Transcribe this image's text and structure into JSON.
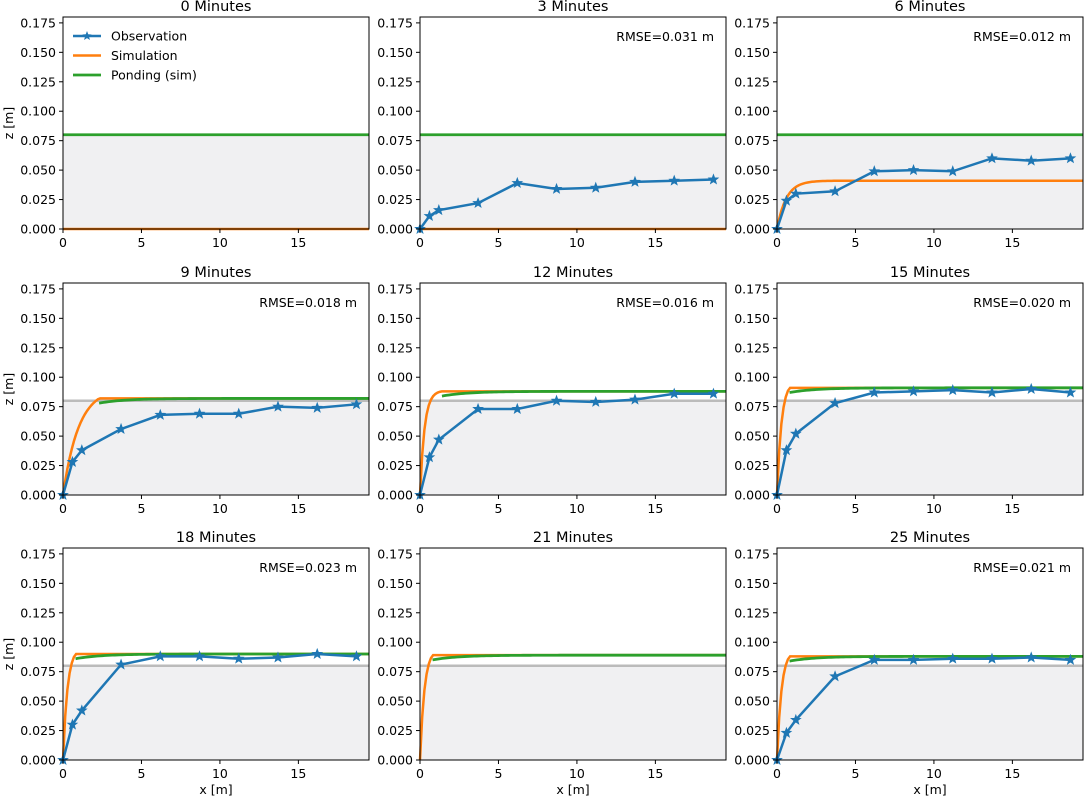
{
  "figure": {
    "legend": [
      "Observation",
      "Simulation",
      "Ponding (sim)"
    ],
    "xlabel": "x [m]",
    "ylabel": "z [m]",
    "colors": {
      "observation": "#1f77b4",
      "simulation": "#ff7f0e",
      "ponding": "#2ca02c",
      "surface": "#bbbbbb",
      "fill": "#f0f0f2"
    }
  },
  "chart_data": [
    {
      "type": "line",
      "title": "0 Minutes",
      "rmse": "",
      "xlim": [
        0,
        19.5
      ],
      "ylim": [
        0,
        0.18
      ],
      "xticks": [
        "0",
        "5",
        "10",
        "15"
      ],
      "yticks": [
        "0.000",
        "0.025",
        "0.050",
        "0.075",
        "0.100",
        "0.125",
        "0.150",
        "0.175"
      ],
      "surface": 0.08,
      "observation": null,
      "simulation": {
        "front": 19.5,
        "end": 0.0,
        "k": 2.0
      },
      "ponding": {
        "front": 19.5,
        "end": 0.08,
        "k": 2.0
      }
    },
    {
      "type": "line",
      "title": "3 Minutes",
      "rmse": "RMSE=0.031 m",
      "xlim": [
        0,
        19.5
      ],
      "ylim": [
        0,
        0.18
      ],
      "xticks": [
        "0",
        "5",
        "10",
        "15"
      ],
      "yticks": [
        "0.000",
        "0.025",
        "0.050",
        "0.075",
        "0.100",
        "0.125",
        "0.150",
        "0.175"
      ],
      "surface": 0.08,
      "observation": {
        "x": [
          0,
          0.6,
          1.2,
          3.7,
          6.2,
          8.7,
          11.2,
          13.7,
          16.2,
          18.7
        ],
        "y": [
          0,
          0.011,
          0.016,
          0.022,
          0.039,
          0.034,
          0.035,
          0.04,
          0.041,
          0.042
        ]
      },
      "simulation": {
        "front": 19.5,
        "end": 0.0,
        "k": 2.0
      },
      "ponding": {
        "front": 19.5,
        "end": 0.08,
        "k": 2.0
      }
    },
    {
      "type": "line",
      "title": "6 Minutes",
      "rmse": "RMSE=0.012 m",
      "xlim": [
        0,
        19.5
      ],
      "ylim": [
        0,
        0.18
      ],
      "xticks": [
        "0",
        "5",
        "10",
        "15"
      ],
      "yticks": [
        "0.000",
        "0.025",
        "0.050",
        "0.075",
        "0.100",
        "0.125",
        "0.150",
        "0.175"
      ],
      "surface": 0.08,
      "observation": {
        "x": [
          0,
          0.6,
          1.2,
          3.7,
          6.2,
          8.7,
          11.2,
          13.7,
          16.2,
          18.7
        ],
        "y": [
          0,
          0.024,
          0.03,
          0.032,
          0.049,
          0.05,
          0.049,
          0.06,
          0.058,
          0.06
        ]
      },
      "simulation": {
        "front": 19.5,
        "end": 0.041,
        "k": 1.7
      },
      "ponding": {
        "front": 19.5,
        "end": 0.08,
        "k": 2.0
      }
    },
    {
      "type": "line",
      "title": "9 Minutes",
      "rmse": "RMSE=0.018 m",
      "xlim": [
        0,
        19.5
      ],
      "ylim": [
        0,
        0.18
      ],
      "xticks": [
        "0",
        "5",
        "10",
        "15"
      ],
      "yticks": [
        "0.000",
        "0.025",
        "0.050",
        "0.075",
        "0.100",
        "0.125",
        "0.150",
        "0.175"
      ],
      "surface": 0.08,
      "observation": {
        "x": [
          0,
          0.6,
          1.2,
          3.7,
          6.2,
          8.7,
          11.2,
          13.7,
          16.2,
          18.7
        ],
        "y": [
          0,
          0.028,
          0.038,
          0.056,
          0.068,
          0.069,
          0.069,
          0.075,
          0.074,
          0.077
        ]
      },
      "simulation": {
        "front": 2.3,
        "end": 0.082,
        "k": 1.0
      },
      "ponding": {
        "front": 2.3,
        "end": 0.082,
        "k": 1.0
      }
    },
    {
      "type": "line",
      "title": "12 Minutes",
      "rmse": "RMSE=0.016 m",
      "xlim": [
        0,
        19.5
      ],
      "ylim": [
        0,
        0.18
      ],
      "xticks": [
        "0",
        "5",
        "10",
        "15"
      ],
      "yticks": [
        "0.000",
        "0.025",
        "0.050",
        "0.075",
        "0.100",
        "0.125",
        "0.150",
        "0.175"
      ],
      "surface": 0.08,
      "observation": {
        "x": [
          0,
          0.6,
          1.2,
          3.7,
          6.2,
          8.7,
          11.2,
          13.7,
          16.2,
          18.7
        ],
        "y": [
          0,
          0.032,
          0.047,
          0.073,
          0.073,
          0.08,
          0.079,
          0.081,
          0.086,
          0.086
        ]
      },
      "simulation": {
        "front": 1.4,
        "end": 0.088,
        "k": 3.5
      },
      "ponding": {
        "front": 1.4,
        "end": 0.088,
        "k": 3.5
      }
    },
    {
      "type": "line",
      "title": "15 Minutes",
      "rmse": "RMSE=0.020 m",
      "xlim": [
        0,
        19.5
      ],
      "ylim": [
        0,
        0.18
      ],
      "xticks": [
        "0",
        "5",
        "10",
        "15"
      ],
      "yticks": [
        "0.000",
        "0.025",
        "0.050",
        "0.075",
        "0.100",
        "0.125",
        "0.150",
        "0.175"
      ],
      "surface": 0.08,
      "observation": {
        "x": [
          0,
          0.6,
          1.2,
          3.7,
          6.2,
          8.7,
          11.2,
          13.7,
          16.2,
          18.7
        ],
        "y": [
          0,
          0.038,
          0.052,
          0.078,
          0.087,
          0.088,
          0.089,
          0.087,
          0.09,
          0.087
        ]
      },
      "simulation": {
        "front": 0.8,
        "end": 0.091,
        "k": 3.5
      },
      "ponding": {
        "front": 0.8,
        "end": 0.091,
        "k": 3.5
      }
    },
    {
      "type": "line",
      "title": "18 Minutes",
      "rmse": "RMSE=0.023 m",
      "xlim": [
        0,
        19.5
      ],
      "ylim": [
        0,
        0.18
      ],
      "xticks": [
        "0",
        "5",
        "10",
        "15"
      ],
      "yticks": [
        "0.000",
        "0.025",
        "0.050",
        "0.075",
        "0.100",
        "0.125",
        "0.150",
        "0.175"
      ],
      "surface": 0.08,
      "observation": {
        "x": [
          0,
          0.6,
          1.2,
          3.7,
          6.2,
          8.7,
          11.2,
          13.7,
          16.2,
          18.7
        ],
        "y": [
          0,
          0.03,
          0.042,
          0.081,
          0.088,
          0.088,
          0.086,
          0.087,
          0.09,
          0.088
        ]
      },
      "simulation": {
        "front": 0.8,
        "end": 0.09,
        "k": 3.5
      },
      "ponding": {
        "front": 0.8,
        "end": 0.09,
        "k": 3.5
      }
    },
    {
      "type": "line",
      "title": "21 Minutes",
      "rmse": "",
      "xlim": [
        0,
        19.5
      ],
      "ylim": [
        0,
        0.18
      ],
      "xticks": [
        "0",
        "5",
        "10",
        "15"
      ],
      "yticks": [
        "0.000",
        "0.025",
        "0.050",
        "0.075",
        "0.100",
        "0.125",
        "0.150",
        "0.175"
      ],
      "surface": 0.08,
      "observation": null,
      "simulation": {
        "front": 0.8,
        "end": 0.089,
        "k": 3.5
      },
      "ponding": {
        "front": 0.8,
        "end": 0.089,
        "k": 3.5
      }
    },
    {
      "type": "line",
      "title": "25 Minutes",
      "rmse": "RMSE=0.021 m",
      "xlim": [
        0,
        19.5
      ],
      "ylim": [
        0,
        0.18
      ],
      "xticks": [
        "0",
        "5",
        "10",
        "15"
      ],
      "yticks": [
        "0.000",
        "0.025",
        "0.050",
        "0.075",
        "0.100",
        "0.125",
        "0.150",
        "0.175"
      ],
      "surface": 0.08,
      "observation": {
        "x": [
          0,
          0.6,
          1.2,
          3.7,
          6.2,
          8.7,
          11.2,
          13.7,
          16.2,
          18.7
        ],
        "y": [
          0,
          0.023,
          0.034,
          0.071,
          0.085,
          0.085,
          0.086,
          0.086,
          0.087,
          0.085
        ]
      },
      "simulation": {
        "front": 0.8,
        "end": 0.088,
        "k": 3.5
      },
      "ponding": {
        "front": 0.8,
        "end": 0.088,
        "k": 3.5
      }
    }
  ]
}
